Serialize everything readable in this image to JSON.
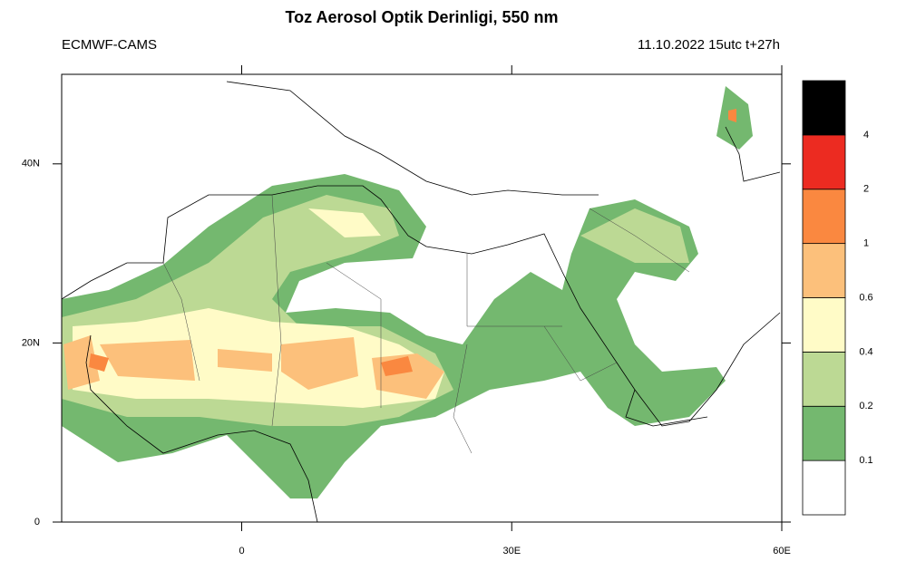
{
  "chart_data": {
    "type": "map",
    "title": "Toz Aerosol Optik Derinligi, 550 nm",
    "subtitle_left": "ECMWF-CAMS",
    "subtitle_right": "11.10.2022 15utc t+27h",
    "xlim": [
      -20,
      60
    ],
    "ylim": [
      0,
      50
    ],
    "xticks": [
      0,
      {
        "value": 30,
        "label": "30E"
      },
      {
        "value": 60,
        "label": "60E"
      }
    ],
    "yticks": [
      0,
      {
        "value": 20,
        "label": "20N"
      },
      {
        "value": 40,
        "label": "40N"
      }
    ],
    "colorbar": {
      "levels": [
        0.1,
        0.2,
        0.4,
        0.6,
        1,
        2,
        4
      ],
      "colors": [
        "#ffffff",
        "#74b86f",
        "#bcd994",
        "#fffbc7",
        "#fcc07b",
        "#fa8840",
        "#ec2b21",
        "#000000"
      ]
    }
  }
}
